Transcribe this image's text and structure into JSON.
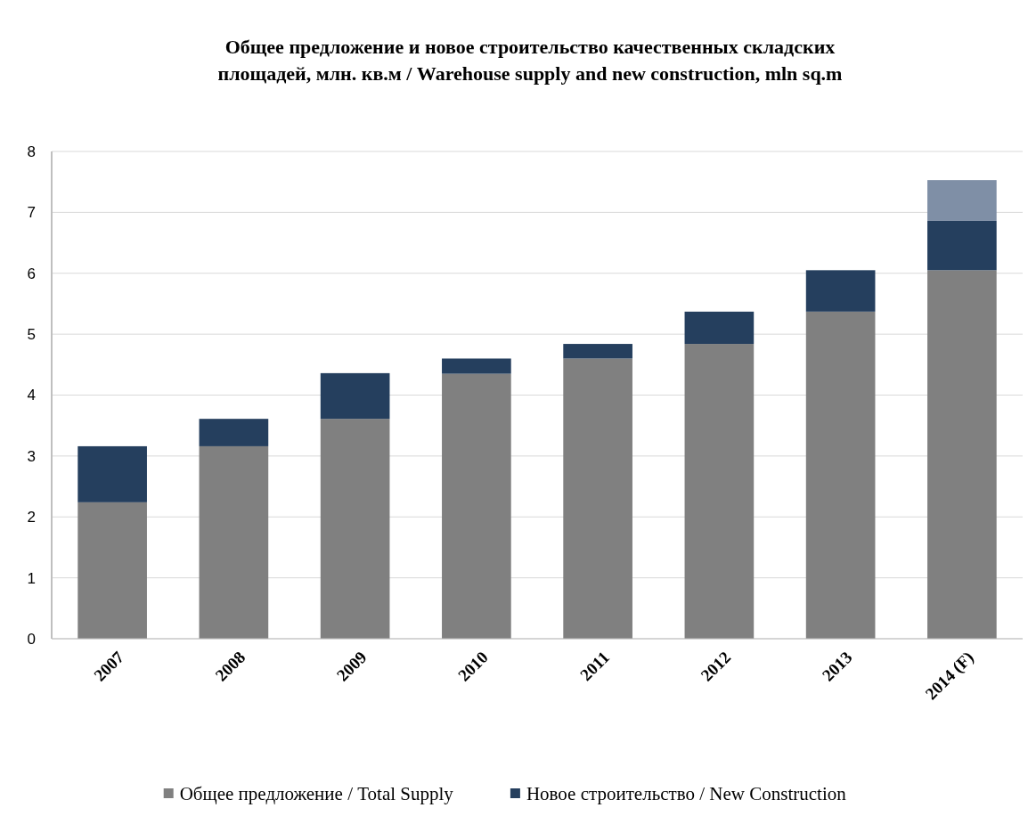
{
  "chart_data": {
    "type": "bar",
    "title": "Общее предложение и новое строительство качественных складских\nплощадей, млн. кв.м / Warehouse  supply and new construction,  mln sq.m",
    "categories": [
      "2007",
      "2008",
      "2009",
      "2010",
      "2011",
      "2012",
      "2013",
      "2014 (F)"
    ],
    "stacked": true,
    "series": [
      {
        "name": "Общее предложение / Total Supply",
        "color": "#808080",
        "values": [
          2.24,
          3.16,
          3.61,
          4.35,
          4.6,
          4.84,
          5.37,
          6.05
        ]
      },
      {
        "name": "Новое строительство  / New Construction",
        "color": "#253f5e",
        "values": [
          0.92,
          0.45,
          0.75,
          0.25,
          0.24,
          0.53,
          0.68,
          0.81
        ]
      },
      {
        "color": "#7f8fa6",
        "values": [
          null,
          null,
          null,
          null,
          null,
          null,
          null,
          0.67
        ]
      }
    ],
    "ylim": [
      0,
      8
    ],
    "yticks": [
      0,
      1,
      2,
      3,
      4,
      5,
      6,
      7,
      8
    ],
    "grid": "y",
    "legend": "bottom"
  }
}
